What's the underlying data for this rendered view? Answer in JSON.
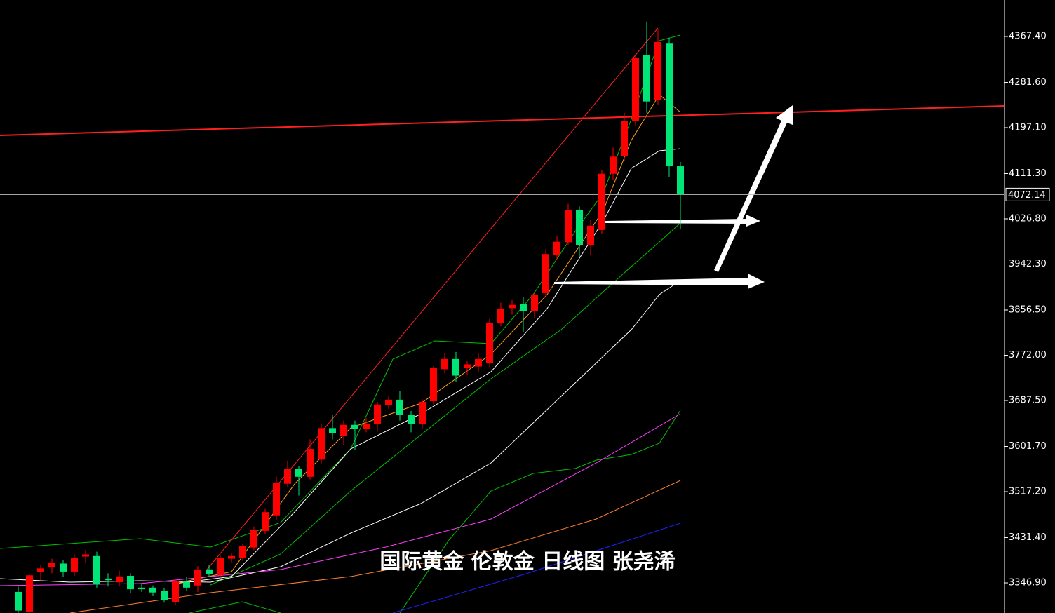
{
  "chart_data": {
    "type": "candlestick",
    "title": "国际黄金 伦敦金 日线图 张尧浠",
    "up_color": "#ff0000",
    "down_color": "#00e676",
    "open": [
      3330,
      3293,
      3367,
      3377,
      3383,
      3368,
      3396,
      3397,
      3355,
      3348,
      3360,
      3338,
      3338,
      3332,
      3311,
      3349,
      3342,
      3372,
      3361,
      3392,
      3394,
      3413,
      3444,
      3473,
      3532,
      3560,
      3545,
      3577,
      3636,
      3621,
      3642,
      3634,
      3643,
      3679,
      3689,
      3660,
      3643,
      3686,
      3746,
      3765,
      3748,
      3751,
      3757,
      3832,
      3860,
      3867,
      3855,
      3888,
      3960,
      3983,
      4043,
      3977,
      4006,
      4111,
      4144,
      4210,
      4333,
      4249,
      4354,
      4125
    ],
    "high": [
      3340,
      3362,
      3380,
      3392,
      3390,
      3400,
      3408,
      3405,
      3365,
      3370,
      3365,
      3345,
      3342,
      3338,
      3355,
      3358,
      3378,
      3380,
      3400,
      3402,
      3420,
      3452,
      3485,
      3545,
      3575,
      3565,
      3615,
      3645,
      3660,
      3650,
      3650,
      3655,
      3685,
      3695,
      3705,
      3668,
      3690,
      3752,
      3775,
      3778,
      3762,
      3775,
      3840,
      3870,
      3875,
      3880,
      3890,
      3970,
      3995,
      4055,
      4050,
      4025,
      4118,
      4160,
      4225,
      4335,
      4395,
      4380,
      4365,
      4133
    ],
    "low": [
      3291,
      3291,
      3350,
      3365,
      3358,
      3360,
      3385,
      3338,
      3340,
      3340,
      3328,
      3330,
      3322,
      3310,
      3305,
      3332,
      3330,
      3358,
      3355,
      3385,
      3388,
      3408,
      3438,
      3465,
      3525,
      3510,
      3540,
      3570,
      3615,
      3605,
      3595,
      3628,
      3630,
      3672,
      3650,
      3628,
      3635,
      3680,
      3738,
      3722,
      3735,
      3740,
      3750,
      3826,
      3848,
      3815,
      3842,
      3880,
      3950,
      3978,
      3955,
      3958,
      3998,
      4100,
      4135,
      4200,
      4225,
      4240,
      4105,
      4007
    ],
    "close": [
      3295,
      3361,
      3374,
      3384,
      3368,
      3394,
      3400,
      3344,
      3352,
      3359,
      3335,
      3335,
      3329,
      3315,
      3350,
      3338,
      3372,
      3364,
      3394,
      3397,
      3416,
      3446,
      3479,
      3534,
      3560,
      3545,
      3597,
      3636,
      3626,
      3642,
      3634,
      3643,
      3680,
      3689,
      3660,
      3643,
      3685,
      3748,
      3765,
      3734,
      3755,
      3765,
      3833,
      3859,
      3866,
      3855,
      3885,
      3961,
      3984,
      4043,
      3977,
      4014,
      4111,
      4143,
      4210,
      4328,
      4246,
      4357,
      4125,
      4072.14
    ],
    "last_price": 4072.14,
    "ylim": [
      3290.6,
      4435.5
    ],
    "yticks": [
      {
        "value": 4367.4,
        "label": "4367.40"
      },
      {
        "value": 4281.6,
        "label": "4281.60"
      },
      {
        "value": 4197.1,
        "label": "4197.10"
      },
      {
        "value": 4111.3,
        "label": "4111.30"
      },
      {
        "value": 4026.8,
        "label": "4026.80"
      },
      {
        "value": 3942.3,
        "label": "3942.30"
      },
      {
        "value": 3856.5,
        "label": "3856.50"
      },
      {
        "value": 3772,
        "label": "3772.00"
      },
      {
        "value": 3687.5,
        "label": "3687.50"
      },
      {
        "value": 3601.7,
        "label": "3601.70"
      },
      {
        "value": 3517.2,
        "label": "3517.20"
      },
      {
        "value": 3431.4,
        "label": "3431.40"
      },
      {
        "value": 3346.9,
        "label": "3346.90"
      }
    ]
  }
}
